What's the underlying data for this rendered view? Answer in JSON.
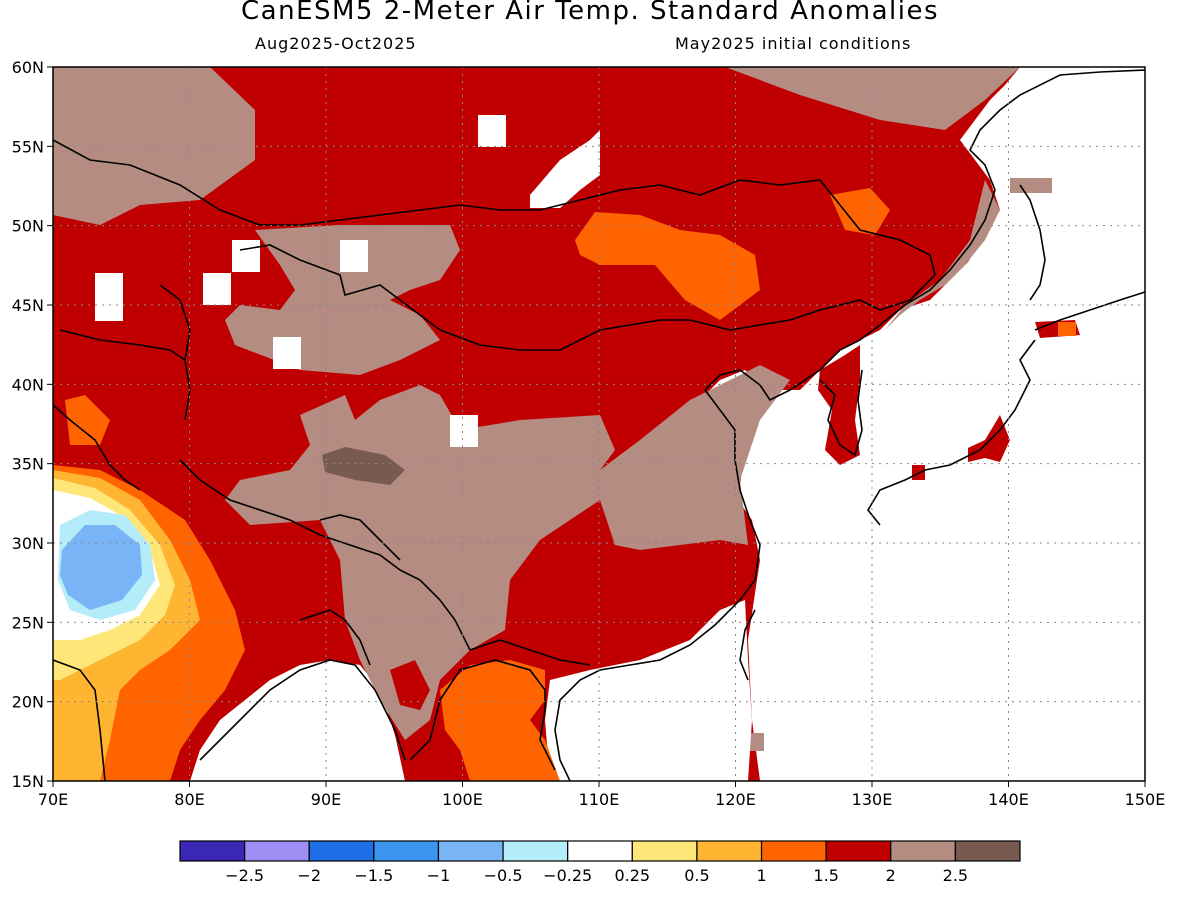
{
  "title": "CanESM5 2-Meter Air Temp. Standard Anomalies",
  "subtitle_left": "Aug2025-Oct2025",
  "subtitle_right": "May2025 initial conditions",
  "map": {
    "lon_range": [
      70,
      150
    ],
    "lat_range": [
      15,
      60
    ],
    "x_ticks": [
      "70E",
      "80E",
      "90E",
      "100E",
      "110E",
      "120E",
      "130E",
      "140E",
      "150E"
    ],
    "y_ticks": [
      "15N",
      "20N",
      "25N",
      "30N",
      "35N",
      "40N",
      "45N",
      "50N",
      "55N",
      "60N"
    ],
    "gridlines": "dotted",
    "background_color": "#c00000"
  },
  "colorbar": {
    "colors": [
      "#3a28b4",
      "#9c8ef2",
      "#1e6ee6",
      "#3c96f0",
      "#78b4f6",
      "#b4ecfa",
      "#ffffff",
      "#ffe678",
      "#ffb432",
      "#ff6400",
      "#c00000",
      "#b48c82",
      "#785a50"
    ],
    "labels": [
      "-2.5",
      "-2",
      "-1.5",
      "-1",
      "-0.5",
      "-0.25",
      "0.25",
      "0.5",
      "1",
      "1.5",
      "2",
      "2.5"
    ]
  }
}
